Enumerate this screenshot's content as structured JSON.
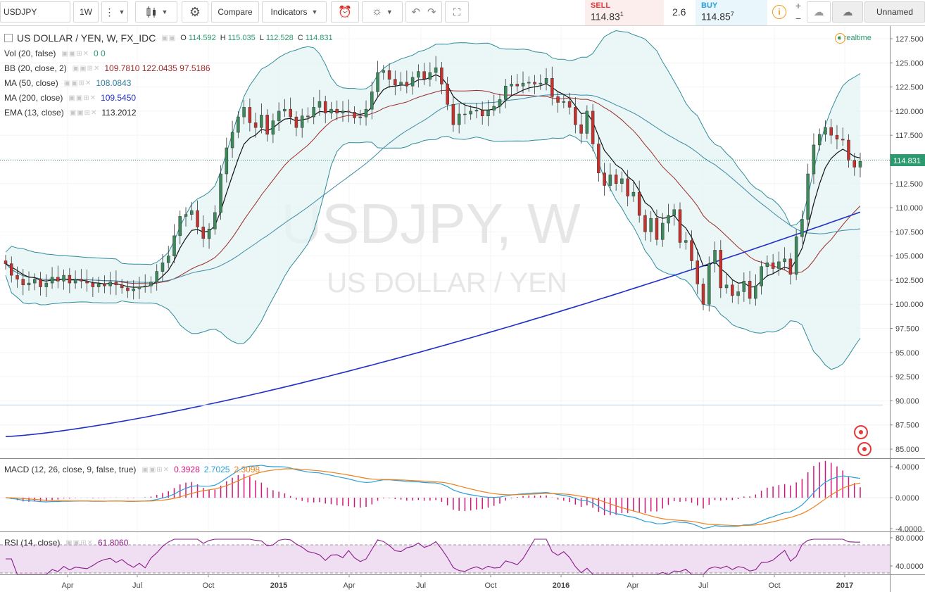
{
  "toolbar": {
    "symbol": "USDJPY",
    "interval": "1W",
    "compare_label": "Compare",
    "indicators_label": "Indicators",
    "sell_label": "SELL",
    "sell_price": "114.83",
    "sell_sup": "1",
    "spread": "2.6",
    "buy_label": "BUY",
    "buy_price": "114.85",
    "buy_sup": "7",
    "layout_name": "Unnamed",
    "plus": "+",
    "minus": "−"
  },
  "header": {
    "title": "US DOLLAR / YEN, W, FX_IDC",
    "o_label": "O",
    "o": "114.592",
    "h_label": "H",
    "h": "115.035",
    "l_label": "L",
    "l": "112.528",
    "c_label": "C",
    "c": "114.831",
    "realtime": "realtime"
  },
  "watermark": {
    "line1": "USDJPY, W",
    "line2": "US DOLLAR / YEN"
  },
  "studies": [
    {
      "name": "Vol (20, false)",
      "values": "0  0",
      "color": "#2b9b6f"
    },
    {
      "name": "BB (20, close, 2)",
      "values": "109.7810  122.0435  97.5186",
      "color": "#a02828"
    },
    {
      "name": "MA (50, close)",
      "values": "108.0843",
      "color": "#2f7fa0"
    },
    {
      "name": "MA (200, close)",
      "values": "109.5450",
      "color": "#1f2fc8"
    },
    {
      "name": "EMA (13, close)",
      "values": "113.2012",
      "color": "#222222"
    }
  ],
  "macd": {
    "name": "MACD (12, 26, close, 9, false, true)",
    "v1": "0.3928",
    "v2": "2.7025",
    "v3": "2.3098"
  },
  "rsi": {
    "name": "RSI (14, close)",
    "value": "61.8060"
  },
  "colors": {
    "up": "#3c8a5c",
    "down": "#c8322e",
    "bb_fill": "#e6f4f4",
    "bb_line": "#2f8c9c",
    "ma200": "#1f2fc8",
    "ema": "#111111",
    "ma50": "#3a8aa8",
    "bb_mid": "#9c2a2a",
    "macd": "#2a9fd8",
    "signal": "#ef7f1a",
    "hist": "#d0167a",
    "rsi": "#8a1c8a",
    "rsi_band": "#f0def3"
  },
  "chart_data": {
    "type": "candlestick",
    "symbol": "USDJPY",
    "timeframe": "W",
    "price_axis": {
      "min": 85.0,
      "max": 127.5,
      "ticks": [
        "127.500",
        "125.000",
        "122.500",
        "120.000",
        "117.500",
        "115.000",
        "112.500",
        "110.000",
        "107.500",
        "105.000",
        "102.500",
        "100.000",
        "97.500",
        "95.000",
        "92.500",
        "90.000",
        "87.500",
        "85.000"
      ]
    },
    "last_price_label": "114.831",
    "time_axis": [
      "Apr",
      "Jul",
      "Oct",
      "2015",
      "Apr",
      "Jul",
      "Oct",
      "2016",
      "Apr",
      "Jul",
      "Oct",
      "2017"
    ],
    "macd_axis": [
      "4.0000",
      "0.0000",
      "-4.0000"
    ],
    "rsi_axis": [
      "80.0000",
      "40.0000"
    ],
    "closes": [
      104.2,
      103.0,
      102.6,
      102.0,
      102.2,
      102.6,
      101.8,
      102.2,
      102.8,
      102.4,
      103.0,
      102.2,
      102.6,
      102.4,
      102.2,
      101.8,
      102.1,
      101.9,
      102.3,
      102.0,
      101.7,
      101.4,
      101.6,
      101.8,
      101.9,
      102.3,
      103.4,
      104.3,
      105.0,
      107.1,
      109.1,
      109.3,
      109.7,
      108.0,
      106.8,
      107.8,
      109.5,
      113.5,
      116.2,
      117.8,
      119.4,
      120.4,
      118.8,
      118.3,
      119.6,
      117.6,
      119.0,
      120.0,
      120.2,
      119.4,
      118.3,
      119.5,
      119.4,
      120.4,
      121.0,
      119.8,
      120.2,
      119.8,
      120.0,
      119.9,
      119.3,
      119.4,
      120.2,
      122.0,
      124.0,
      124.2,
      123.3,
      122.7,
      123.0,
      122.6,
      123.5,
      124.1,
      123.3,
      124.0,
      124.5,
      122.8,
      120.7,
      118.6,
      119.7,
      119.7,
      120.0,
      120.1,
      119.5,
      120.1,
      120.5,
      121.2,
      122.6,
      122.8,
      122.6,
      122.9,
      123.0,
      122.8,
      122.9,
      123.4,
      121.5,
      120.9,
      121.0,
      120.4,
      118.6,
      117.7,
      120.0,
      116.6,
      113.6,
      112.3,
      113.4,
      112.5,
      113.0,
      111.2,
      111.6,
      109.2,
      107.5,
      108.9,
      106.7,
      108.4,
      109.2,
      109.8,
      106.4,
      106.6,
      104.5,
      102.1,
      100.0,
      104.2,
      105.6,
      101.7,
      102.0,
      100.9,
      101.3,
      102.4,
      100.6,
      101.9,
      103.9,
      104.3,
      103.7,
      104.4,
      104.7,
      103.1,
      107.0,
      108.8,
      113.5,
      116.5,
      117.6,
      118.3,
      117.5,
      117.1,
      117.0,
      114.9,
      114.2,
      114.8
    ]
  }
}
